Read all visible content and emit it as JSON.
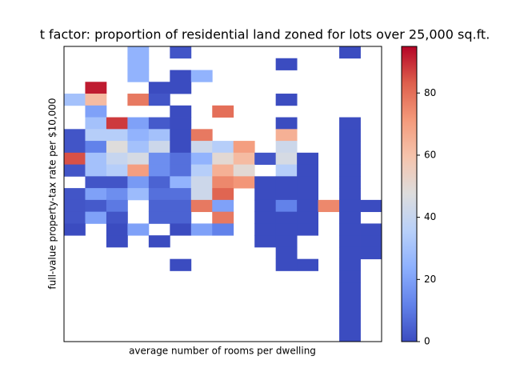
{
  "chart_data": {
    "type": "heatmap",
    "title": "t factor: proportion of residential land zoned for lots over 25,000 sq.ft.",
    "x_label": "average number of rooms per dwelling",
    "y_label": "full-value property-tax rate per $10,000",
    "colormap": "coolwarm",
    "zlim": [
      0,
      95
    ],
    "zticks": [
      0,
      20,
      40,
      60,
      80
    ],
    "z": [
      [
        null,
        null,
        null,
        25,
        null,
        2,
        null,
        null,
        null,
        null,
        null,
        null,
        null,
        0,
        null
      ],
      [
        null,
        null,
        null,
        25,
        null,
        null,
        null,
        null,
        null,
        null,
        0,
        null,
        null,
        null,
        null
      ],
      [
        null,
        null,
        null,
        25,
        null,
        0,
        25,
        null,
        null,
        null,
        null,
        null,
        null,
        null,
        null
      ],
      [
        null,
        92,
        null,
        null,
        0,
        0,
        null,
        null,
        null,
        null,
        null,
        null,
        null,
        null,
        null
      ],
      [
        30,
        62,
        null,
        78,
        2,
        null,
        null,
        null,
        null,
        null,
        0,
        null,
        null,
        null,
        null
      ],
      [
        null,
        20,
        null,
        null,
        null,
        0,
        null,
        80,
        null,
        null,
        null,
        null,
        null,
        null,
        null
      ],
      [
        null,
        30,
        88,
        20,
        3,
        0,
        null,
        null,
        null,
        null,
        0,
        null,
        null,
        0,
        null
      ],
      [
        2,
        35,
        35,
        25,
        30,
        0,
        78,
        null,
        null,
        null,
        65,
        null,
        null,
        0,
        null
      ],
      [
        2,
        12,
        48,
        30,
        42,
        0,
        42,
        35,
        70,
        null,
        42,
        null,
        null,
        0,
        null
      ],
      [
        85,
        30,
        40,
        45,
        15,
        8,
        25,
        50,
        62,
        2,
        45,
        0,
        null,
        0,
        null
      ],
      [
        2,
        30,
        35,
        70,
        15,
        8,
        35,
        65,
        50,
        null,
        35,
        0,
        null,
        0,
        null
      ],
      [
        null,
        2,
        2,
        18,
        5,
        25,
        42,
        75,
        72,
        0,
        0,
        0,
        null,
        0,
        null
      ],
      [
        2,
        20,
        15,
        28,
        8,
        8,
        42,
        82,
        null,
        0,
        0,
        0,
        null,
        0,
        null
      ],
      [
        2,
        3,
        10,
        null,
        5,
        5,
        78,
        20,
        null,
        0,
        12,
        0,
        75,
        0,
        0
      ],
      [
        2,
        20,
        2,
        null,
        5,
        5,
        null,
        78,
        null,
        0,
        0,
        0,
        null,
        0,
        null
      ],
      [
        0,
        null,
        0,
        20,
        null,
        0,
        20,
        12,
        null,
        0,
        0,
        0,
        null,
        0,
        0
      ],
      [
        null,
        null,
        0,
        null,
        0,
        null,
        null,
        null,
        null,
        0,
        0,
        null,
        null,
        0,
        0
      ],
      [
        null,
        null,
        null,
        null,
        null,
        null,
        null,
        null,
        null,
        null,
        0,
        null,
        null,
        0,
        0
      ],
      [
        null,
        null,
        null,
        null,
        null,
        0,
        null,
        null,
        null,
        null,
        0,
        0,
        null,
        0,
        null
      ],
      [
        null,
        null,
        null,
        null,
        null,
        null,
        null,
        null,
        null,
        null,
        null,
        null,
        null,
        0,
        null
      ],
      [
        null,
        null,
        null,
        null,
        null,
        null,
        null,
        null,
        null,
        null,
        null,
        null,
        null,
        0,
        null
      ],
      [
        null,
        null,
        null,
        null,
        null,
        null,
        null,
        null,
        null,
        null,
        null,
        null,
        null,
        0,
        null
      ],
      [
        null,
        null,
        null,
        null,
        null,
        null,
        null,
        null,
        null,
        null,
        null,
        null,
        null,
        0,
        null
      ],
      [
        null,
        null,
        null,
        null,
        null,
        null,
        null,
        null,
        null,
        null,
        null,
        null,
        null,
        0,
        null
      ],
      [
        null,
        null,
        null,
        null,
        null,
        null,
        null,
        null,
        null,
        null,
        null,
        null,
        null,
        0,
        null
      ]
    ]
  }
}
